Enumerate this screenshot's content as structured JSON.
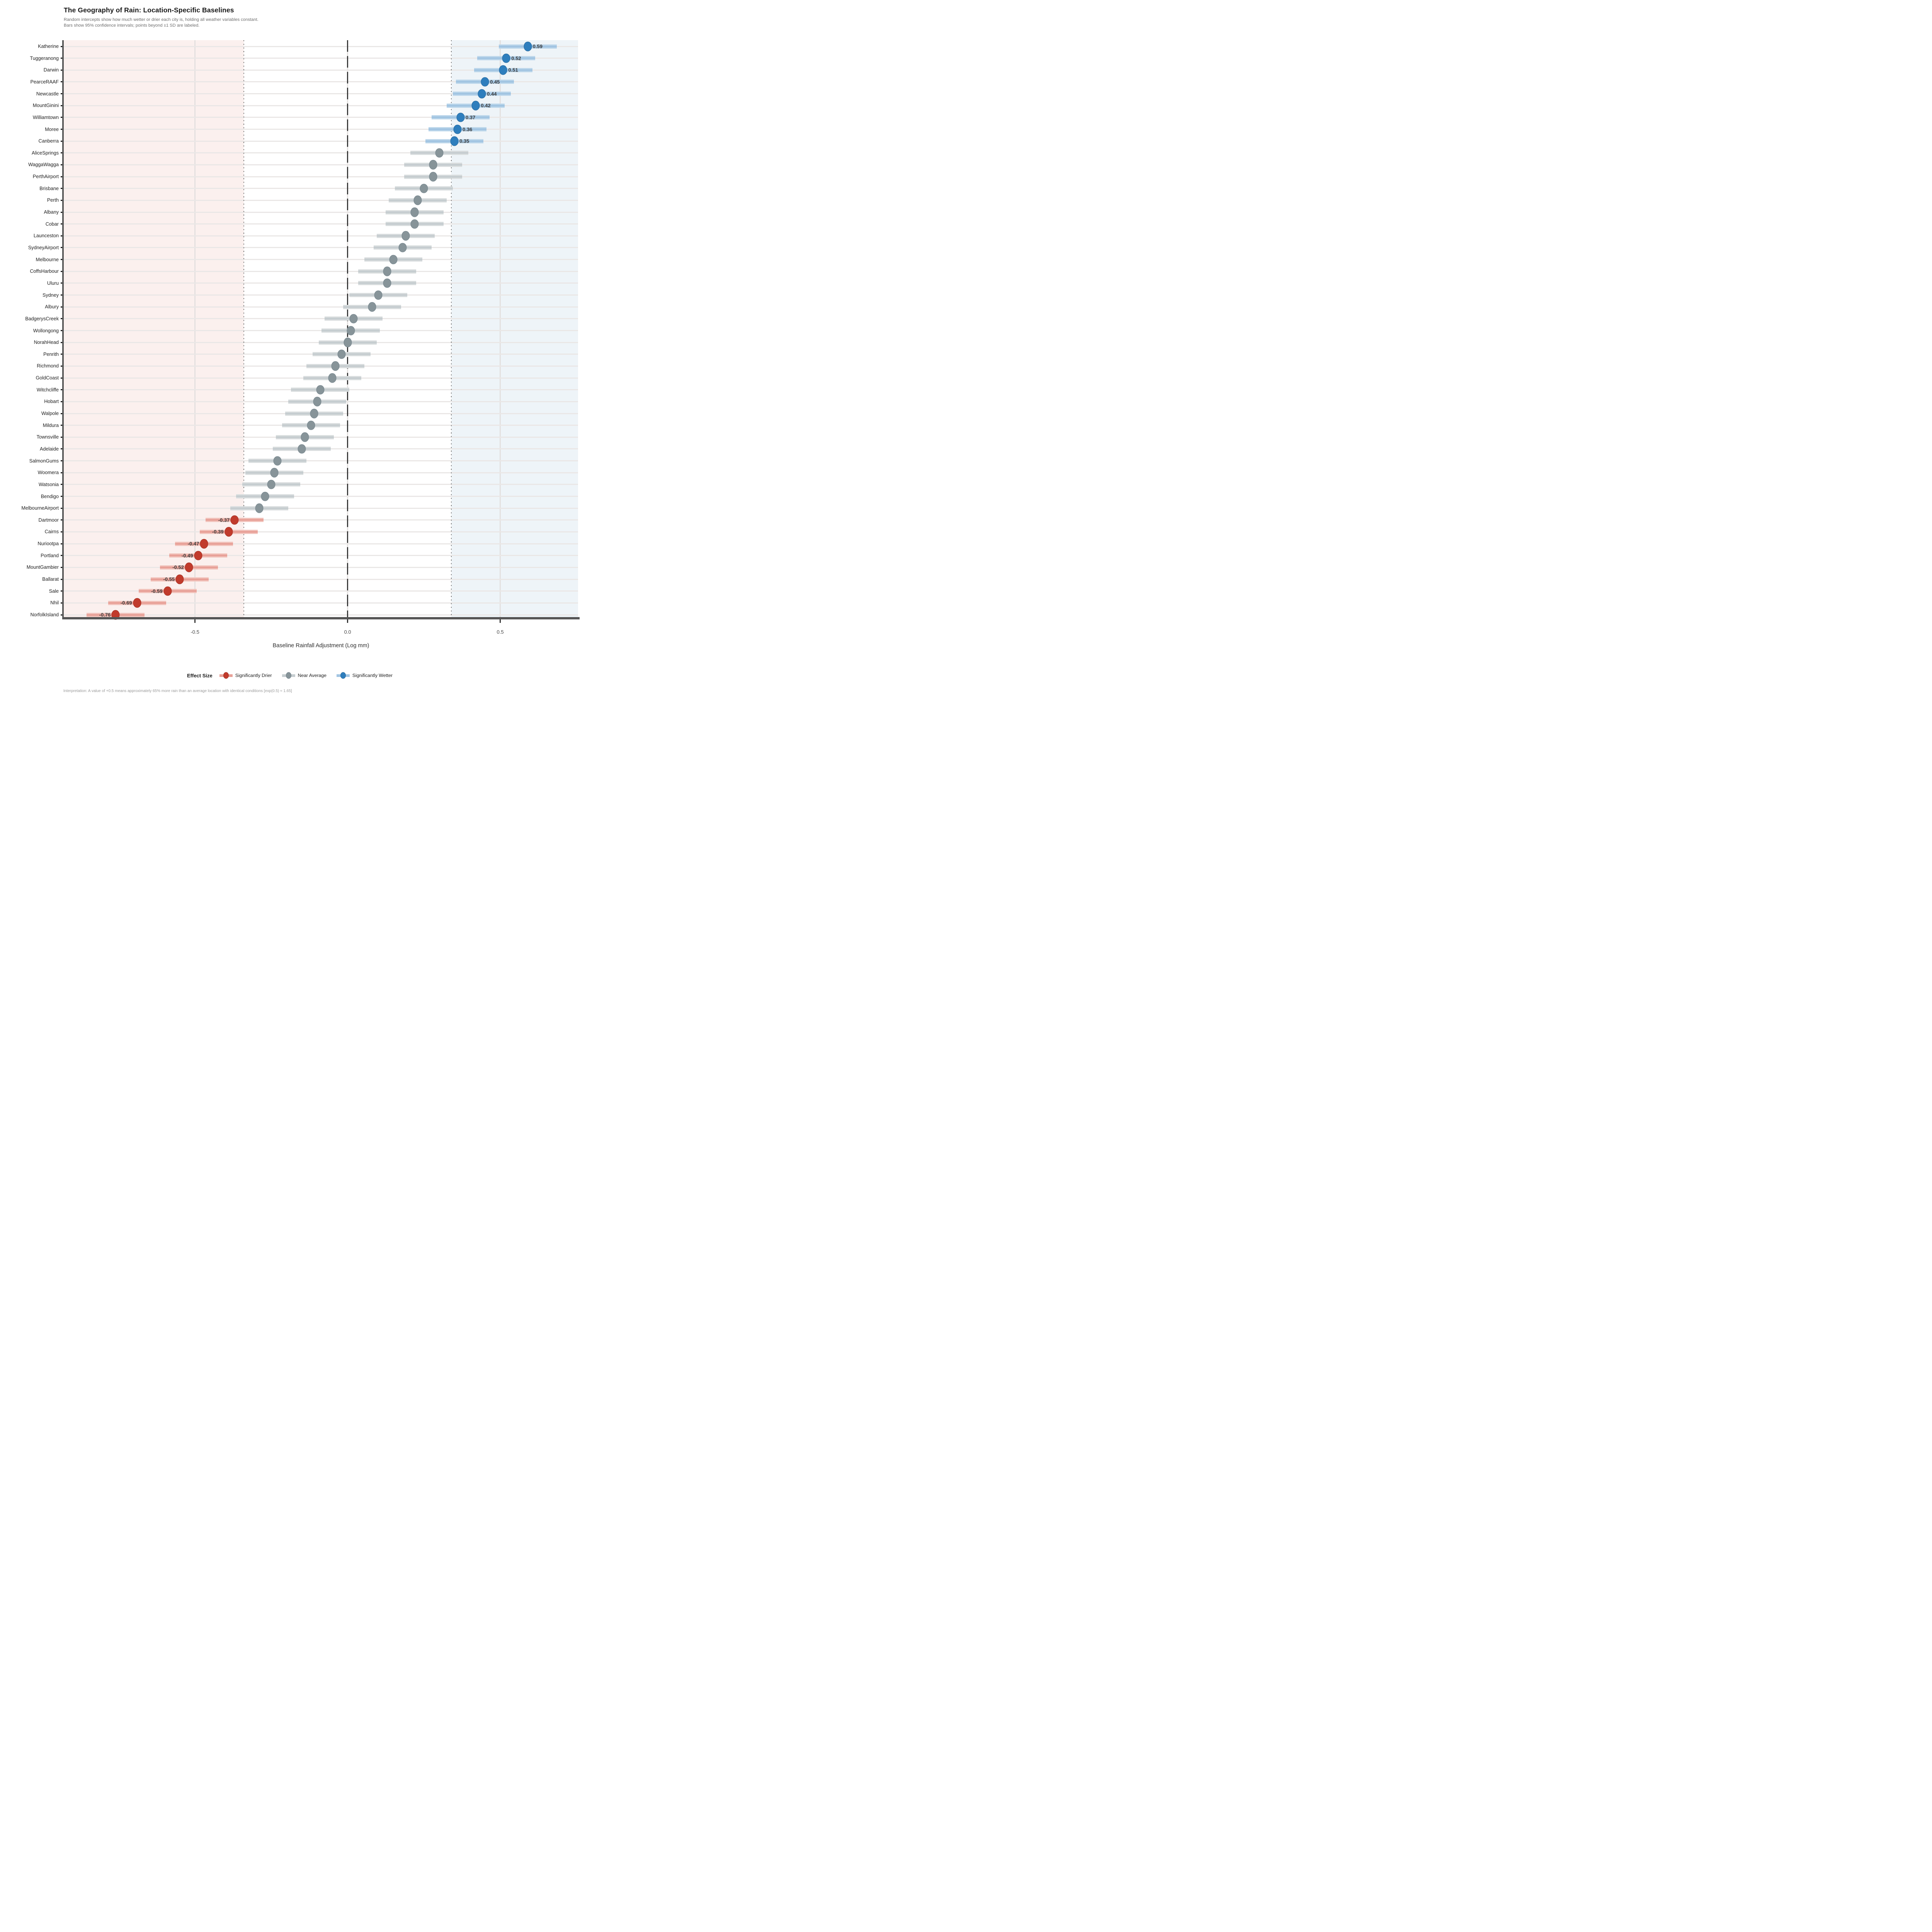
{
  "title": "The Geography of Rain: Location-Specific Baselines",
  "subtitle_line1": "Random intercepts show how much wetter or drier each city is, holding all weather variables constant.",
  "subtitle_line2": "Bars show 95% confidence intervals; points beyond ±1 SD are labeled.",
  "footer": "Interpretation: A value of +0.5 means approximately 65% more rain than an average location with identical conditions [exp(0.5) ≈ 1.65]",
  "x_axis": {
    "label": "Baseline Rainfall Adjustment (Log mm)",
    "tick_values": [
      -0.5,
      0.0,
      0.5
    ],
    "tick_labels": [
      "-0.5",
      "0.0",
      "0.5"
    ]
  },
  "legend": {
    "title": "Effect Size",
    "entries": [
      {
        "label": "Significantly Drier",
        "group": "drier"
      },
      {
        "label": "Near Average",
        "group": "near"
      },
      {
        "label": "Significantly Wetter",
        "group": "wetter"
      }
    ]
  },
  "chart_data": {
    "type": "scatter",
    "subtype": "dot-and-interval (forest plot), horizontal",
    "xlabel": "Baseline Rainfall Adjustment (Log mm)",
    "xlim": [
      -0.93,
      0.755
    ],
    "zero_reference_line": 0.0,
    "sd_threshold": 0.34,
    "ci_halfwidth": 0.095,
    "grid": "horizontal per city + vertical at ticks",
    "legend_position": "bottom",
    "points": [
      {
        "city": "Katherine",
        "value": 0.59,
        "group": "wetter",
        "label": "0.59"
      },
      {
        "city": "Tuggeranong",
        "value": 0.52,
        "group": "wetter",
        "label": "0.52"
      },
      {
        "city": "Darwin",
        "value": 0.51,
        "group": "wetter",
        "label": "0.51"
      },
      {
        "city": "PearceRAAF",
        "value": 0.45,
        "group": "wetter",
        "label": "0.45"
      },
      {
        "city": "Newcastle",
        "value": 0.44,
        "group": "wetter",
        "label": "0.44"
      },
      {
        "city": "MountGinini",
        "value": 0.42,
        "group": "wetter",
        "label": "0.42"
      },
      {
        "city": "Williamtown",
        "value": 0.37,
        "group": "wetter",
        "label": "0.37"
      },
      {
        "city": "Moree",
        "value": 0.36,
        "group": "wetter",
        "label": "0.36"
      },
      {
        "city": "Canberra",
        "value": 0.35,
        "group": "wetter",
        "label": "0.35"
      },
      {
        "city": "AliceSprings",
        "value": 0.3,
        "group": "near"
      },
      {
        "city": "WaggaWagga",
        "value": 0.28,
        "group": "near"
      },
      {
        "city": "PerthAirport",
        "value": 0.28,
        "group": "near"
      },
      {
        "city": "Brisbane",
        "value": 0.25,
        "group": "near"
      },
      {
        "city": "Perth",
        "value": 0.23,
        "group": "near"
      },
      {
        "city": "Albany",
        "value": 0.22,
        "group": "near"
      },
      {
        "city": "Cobar",
        "value": 0.22,
        "group": "near"
      },
      {
        "city": "Launceston",
        "value": 0.19,
        "group": "near"
      },
      {
        "city": "SydneyAirport",
        "value": 0.18,
        "group": "near"
      },
      {
        "city": "Melbourne",
        "value": 0.15,
        "group": "near"
      },
      {
        "city": "CoffsHarbour",
        "value": 0.13,
        "group": "near"
      },
      {
        "city": "Uluru",
        "value": 0.13,
        "group": "near"
      },
      {
        "city": "Sydney",
        "value": 0.1,
        "group": "near"
      },
      {
        "city": "Albury",
        "value": 0.08,
        "group": "near"
      },
      {
        "city": "BadgerysCreek",
        "value": 0.02,
        "group": "near"
      },
      {
        "city": "Wollongong",
        "value": 0.01,
        "group": "near"
      },
      {
        "city": "NorahHead",
        "value": 0.0,
        "group": "near"
      },
      {
        "city": "Penrith",
        "value": -0.02,
        "group": "near"
      },
      {
        "city": "Richmond",
        "value": -0.04,
        "group": "near"
      },
      {
        "city": "GoldCoast",
        "value": -0.05,
        "group": "near"
      },
      {
        "city": "Witchcliffe",
        "value": -0.09,
        "group": "near"
      },
      {
        "city": "Hobart",
        "value": -0.1,
        "group": "near"
      },
      {
        "city": "Walpole",
        "value": -0.11,
        "group": "near"
      },
      {
        "city": "Mildura",
        "value": -0.12,
        "group": "near"
      },
      {
        "city": "Townsville",
        "value": -0.14,
        "group": "near"
      },
      {
        "city": "Adelaide",
        "value": -0.15,
        "group": "near"
      },
      {
        "city": "SalmonGums",
        "value": -0.23,
        "group": "near"
      },
      {
        "city": "Woomera",
        "value": -0.24,
        "group": "near"
      },
      {
        "city": "Watsonia",
        "value": -0.25,
        "group": "near"
      },
      {
        "city": "Bendigo",
        "value": -0.27,
        "group": "near"
      },
      {
        "city": "MelbourneAirport",
        "value": -0.29,
        "group": "near"
      },
      {
        "city": "Dartmoor",
        "value": -0.37,
        "group": "drier",
        "label": "-0.37"
      },
      {
        "city": "Cairns",
        "value": -0.39,
        "group": "drier",
        "label": "-0.39"
      },
      {
        "city": "Nuriootpa",
        "value": -0.47,
        "group": "drier",
        "label": "-0.47"
      },
      {
        "city": "Portland",
        "value": -0.49,
        "group": "drier",
        "label": "-0.49"
      },
      {
        "city": "MountGambier",
        "value": -0.52,
        "group": "drier",
        "label": "-0.52"
      },
      {
        "city": "Ballarat",
        "value": -0.55,
        "group": "drier",
        "label": "-0.55"
      },
      {
        "city": "Sale",
        "value": -0.59,
        "group": "drier",
        "label": "-0.59"
      },
      {
        "city": "Nhil",
        "value": -0.69,
        "group": "drier",
        "label": "-0.69"
      },
      {
        "city": "NorfolkIsland",
        "value": -0.76,
        "group": "drier",
        "label": "-0.76"
      }
    ]
  },
  "colors": {
    "drier": {
      "fill": "#c13b2c",
      "stroke": "#a32e21",
      "bar_light": "#f2c5be",
      "bar_dark": "#e8a198",
      "region": "#fbf0ee"
    },
    "near": {
      "fill": "#879499",
      "stroke": "#74848c",
      "bar_light": "#dadedf",
      "bar_dark": "#c6cdd0",
      "region": "#ffffff"
    },
    "wetter": {
      "fill": "#2e7ebd",
      "stroke": "#25689d",
      "bar_light": "#bdd7eb",
      "bar_dark": "#a2c5e2",
      "region": "#eef4f8"
    },
    "zero_line": "#3d3d3d",
    "sd_line": "#787878",
    "grid_h": "#eae7e6",
    "grid_v": "#e3e0df",
    "axis": "#565656",
    "title_text": "#191919",
    "subtitle_text": "#6e6e6e",
    "value_label_text": "#3c3c3c",
    "footer_text": "#9a9a9a"
  }
}
